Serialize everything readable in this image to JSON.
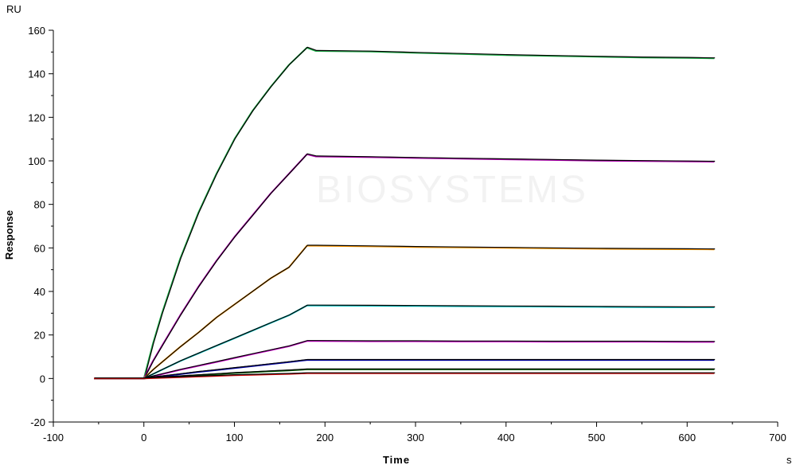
{
  "chart_data": {
    "type": "line",
    "title": "",
    "xlabel": "Time",
    "ylabel": "Response",
    "x_unit": "s",
    "y_unit": "RU",
    "xlim": [
      -100,
      700
    ],
    "ylim": [
      -20,
      160
    ],
    "x_ticks": [
      -100,
      0,
      100,
      200,
      300,
      400,
      500,
      600,
      700
    ],
    "y_ticks": [
      -20,
      0,
      20,
      40,
      60,
      80,
      100,
      120,
      140,
      160
    ],
    "grid": false,
    "legend": "none",
    "watermark": "BIOSYSTEMS",
    "series": [
      {
        "color": "#22b14c",
        "fit_color": "#000000",
        "x": [
          -55,
          0,
          10,
          20,
          40,
          60,
          80,
          100,
          120,
          140,
          160,
          180,
          190,
          250,
          300,
          350,
          400,
          450,
          500,
          550,
          600,
          630
        ],
        "values": [
          0,
          0,
          16,
          30,
          55,
          76,
          94,
          110,
          123,
          134,
          144,
          152,
          150.5,
          150.2,
          149.6,
          149.1,
          148.6,
          148.2,
          147.8,
          147.5,
          147.3,
          147.1
        ]
      },
      {
        "color": "#b000b0",
        "fit_color": "#000000",
        "x": [
          -55,
          0,
          10,
          20,
          40,
          60,
          80,
          100,
          120,
          140,
          160,
          180,
          190,
          250,
          300,
          350,
          400,
          450,
          500,
          550,
          600,
          630
        ],
        "values": [
          0,
          0,
          8,
          15,
          29,
          42,
          54,
          65,
          75,
          85,
          94,
          103,
          102,
          101.7,
          101.3,
          101,
          100.7,
          100.4,
          100.1,
          99.9,
          99.7,
          99.6
        ]
      },
      {
        "color": "#ff9900",
        "fit_color": "#000000",
        "x": [
          -55,
          0,
          10,
          20,
          40,
          60,
          80,
          100,
          120,
          140,
          160,
          180,
          190,
          250,
          300,
          350,
          400,
          450,
          500,
          550,
          600,
          630
        ],
        "values": [
          0,
          0,
          4,
          7.5,
          14.5,
          21,
          28,
          34,
          40,
          46,
          51,
          61,
          61,
          60.7,
          60.4,
          60.2,
          60,
          59.8,
          59.6,
          59.5,
          59.4,
          59.3
        ]
      },
      {
        "color": "#00c0c0",
        "fit_color": "#000000",
        "x": [
          -55,
          0,
          10,
          20,
          40,
          60,
          80,
          100,
          120,
          140,
          160,
          180,
          190,
          250,
          300,
          350,
          400,
          450,
          500,
          550,
          600,
          630
        ],
        "values": [
          0,
          0,
          2,
          4,
          8,
          11.5,
          15,
          18.5,
          22,
          25.5,
          29,
          33.5,
          33.5,
          33.4,
          33.3,
          33.2,
          33.1,
          33,
          32.9,
          32.8,
          32.7,
          32.7
        ]
      },
      {
        "color": "#d000d0",
        "fit_color": "#000000",
        "x": [
          -55,
          0,
          10,
          20,
          40,
          60,
          80,
          100,
          120,
          140,
          160,
          180,
          190,
          250,
          300,
          350,
          400,
          450,
          500,
          550,
          600,
          630
        ],
        "values": [
          0,
          0,
          1,
          2,
          4,
          5.8,
          7.6,
          9.4,
          11.2,
          13,
          14.8,
          17.2,
          17.2,
          17.1,
          17.1,
          17,
          17,
          16.9,
          16.9,
          16.9,
          16.8,
          16.8
        ]
      },
      {
        "color": "#0000b0",
        "fit_color": "#000000",
        "x": [
          -55,
          0,
          10,
          20,
          40,
          60,
          80,
          100,
          120,
          140,
          160,
          180,
          190,
          250,
          300,
          350,
          400,
          450,
          500,
          550,
          600,
          630
        ],
        "values": [
          0,
          0,
          0.5,
          1,
          2,
          3,
          3.9,
          4.8,
          5.7,
          6.6,
          7.5,
          8.5,
          8.5,
          8.5,
          8.5,
          8.5,
          8.5,
          8.5,
          8.5,
          8.5,
          8.5,
          8.5
        ]
      },
      {
        "color": "#006000",
        "fit_color": "#000000",
        "x": [
          -55,
          0,
          10,
          20,
          40,
          60,
          80,
          100,
          120,
          140,
          160,
          180,
          190,
          250,
          300,
          350,
          400,
          450,
          500,
          550,
          600,
          630
        ],
        "values": [
          0,
          0,
          0.3,
          0.5,
          1,
          1.5,
          2,
          2.5,
          2.9,
          3.3,
          3.7,
          4.2,
          4.2,
          4.2,
          4.2,
          4.2,
          4.2,
          4.2,
          4.2,
          4.2,
          4.2,
          4.2
        ]
      },
      {
        "color": "#e01010",
        "fit_color": "#000000",
        "x": [
          -55,
          0,
          10,
          20,
          40,
          60,
          80,
          100,
          120,
          140,
          160,
          180,
          190,
          250,
          300,
          350,
          400,
          450,
          500,
          550,
          600,
          630
        ],
        "values": [
          0,
          0,
          0.15,
          0.3,
          0.6,
          0.9,
          1.2,
          1.5,
          1.7,
          1.9,
          2.1,
          2.4,
          2.4,
          2.4,
          2.4,
          2.4,
          2.4,
          2.4,
          2.4,
          2.4,
          2.4,
          2.4
        ]
      }
    ]
  }
}
